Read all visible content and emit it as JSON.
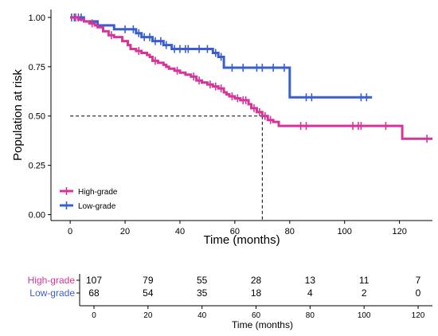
{
  "chart_data": {
    "type": "line",
    "subtype": "kaplan-meier",
    "xlabel": "Time (months)",
    "ylabel": "Population at risk",
    "xlim": [
      -7,
      132
    ],
    "ylim": [
      -0.03,
      1.04
    ],
    "xticks": [
      "0",
      "20",
      "40",
      "60",
      "80",
      "100",
      "120"
    ],
    "yticks": [
      "0.00",
      "0.25",
      "0.50",
      "0.75",
      "1.00"
    ],
    "grid": false,
    "legend_position": "bottom-left",
    "median_line": {
      "y": 0.5,
      "x": 70
    },
    "series": [
      {
        "name": "High-grade",
        "color": "#d6349a",
        "steps": [
          [
            0,
            1.0
          ],
          [
            3,
            0.99
          ],
          [
            5,
            0.98
          ],
          [
            7,
            0.97
          ],
          [
            9,
            0.96
          ],
          [
            10,
            0.95
          ],
          [
            12,
            0.93
          ],
          [
            14,
            0.91
          ],
          [
            16,
            0.9
          ],
          [
            19,
            0.88
          ],
          [
            21,
            0.86
          ],
          [
            22,
            0.84
          ],
          [
            24,
            0.83
          ],
          [
            26,
            0.82
          ],
          [
            28,
            0.81
          ],
          [
            29,
            0.8
          ],
          [
            30,
            0.78
          ],
          [
            32,
            0.77
          ],
          [
            34,
            0.76
          ],
          [
            35,
            0.75
          ],
          [
            36,
            0.74
          ],
          [
            38,
            0.73
          ],
          [
            40,
            0.72
          ],
          [
            42,
            0.71
          ],
          [
            44,
            0.7
          ],
          [
            46,
            0.68
          ],
          [
            48,
            0.67
          ],
          [
            50,
            0.66
          ],
          [
            52,
            0.65
          ],
          [
            54,
            0.64
          ],
          [
            56,
            0.62
          ],
          [
            57,
            0.61
          ],
          [
            58,
            0.6
          ],
          [
            60,
            0.59
          ],
          [
            62,
            0.58
          ],
          [
            65,
            0.56
          ],
          [
            66,
            0.54
          ],
          [
            68,
            0.52
          ],
          [
            70,
            0.5
          ],
          [
            72,
            0.48
          ],
          [
            74,
            0.47
          ],
          [
            76,
            0.45
          ],
          [
            121,
            0.385
          ]
        ],
        "end_x": 132,
        "censors": [
          [
            2,
            1.0
          ],
          [
            8,
            0.97
          ],
          [
            15,
            0.91
          ],
          [
            25,
            0.83
          ],
          [
            31,
            0.78
          ],
          [
            39,
            0.73
          ],
          [
            45,
            0.7
          ],
          [
            47,
            0.68
          ],
          [
            51,
            0.66
          ],
          [
            53,
            0.65
          ],
          [
            55,
            0.64
          ],
          [
            59,
            0.6
          ],
          [
            61,
            0.59
          ],
          [
            63,
            0.58
          ],
          [
            64,
            0.58
          ],
          [
            67,
            0.54
          ],
          [
            69,
            0.52
          ],
          [
            71,
            0.5
          ],
          [
            73,
            0.48
          ],
          [
            84,
            0.45
          ],
          [
            86,
            0.45
          ],
          [
            103,
            0.45
          ],
          [
            105,
            0.45
          ],
          [
            106,
            0.45
          ],
          [
            115,
            0.45
          ],
          [
            130,
            0.385
          ]
        ]
      },
      {
        "name": "Low-grade",
        "color": "#3a5fcd",
        "steps": [
          [
            0,
            1.0
          ],
          [
            5,
            0.98
          ],
          [
            10,
            0.96
          ],
          [
            16,
            0.94
          ],
          [
            24,
            0.92
          ],
          [
            26,
            0.9
          ],
          [
            30,
            0.88
          ],
          [
            34,
            0.86
          ],
          [
            37,
            0.84
          ],
          [
            52,
            0.82
          ],
          [
            54,
            0.8
          ],
          [
            56,
            0.745
          ],
          [
            80,
            0.595
          ]
        ],
        "end_x": 110,
        "censors": [
          [
            0.5,
            1.0
          ],
          [
            1.5,
            1.0
          ],
          [
            3,
            1.0
          ],
          [
            4,
            1.0
          ],
          [
            20,
            0.94
          ],
          [
            23,
            0.94
          ],
          [
            25,
            0.92
          ],
          [
            27,
            0.9
          ],
          [
            29,
            0.9
          ],
          [
            31,
            0.88
          ],
          [
            33,
            0.88
          ],
          [
            35,
            0.86
          ],
          [
            38,
            0.84
          ],
          [
            40,
            0.84
          ],
          [
            42,
            0.84
          ],
          [
            43,
            0.84
          ],
          [
            47,
            0.84
          ],
          [
            50,
            0.84
          ],
          [
            53,
            0.82
          ],
          [
            55,
            0.8
          ],
          [
            59,
            0.745
          ],
          [
            63,
            0.745
          ],
          [
            68,
            0.745
          ],
          [
            70,
            0.745
          ],
          [
            74,
            0.745
          ],
          [
            78,
            0.745
          ],
          [
            86,
            0.595
          ],
          [
            88,
            0.595
          ],
          [
            106,
            0.595
          ],
          [
            108,
            0.595
          ]
        ]
      }
    ],
    "risk_table": {
      "xlabel": "Time (months)",
      "times": [
        "0",
        "20",
        "40",
        "60",
        "80",
        "100",
        "120"
      ],
      "rows": [
        {
          "name": "High-grade",
          "color": "#d6349a",
          "values": [
            "107",
            "79",
            "55",
            "28",
            "13",
            "11",
            "7"
          ]
        },
        {
          "name": "Low-grade",
          "color": "#3a5fcd",
          "values": [
            "68",
            "54",
            "35",
            "18",
            "4",
            "2",
            "0"
          ]
        }
      ]
    }
  }
}
